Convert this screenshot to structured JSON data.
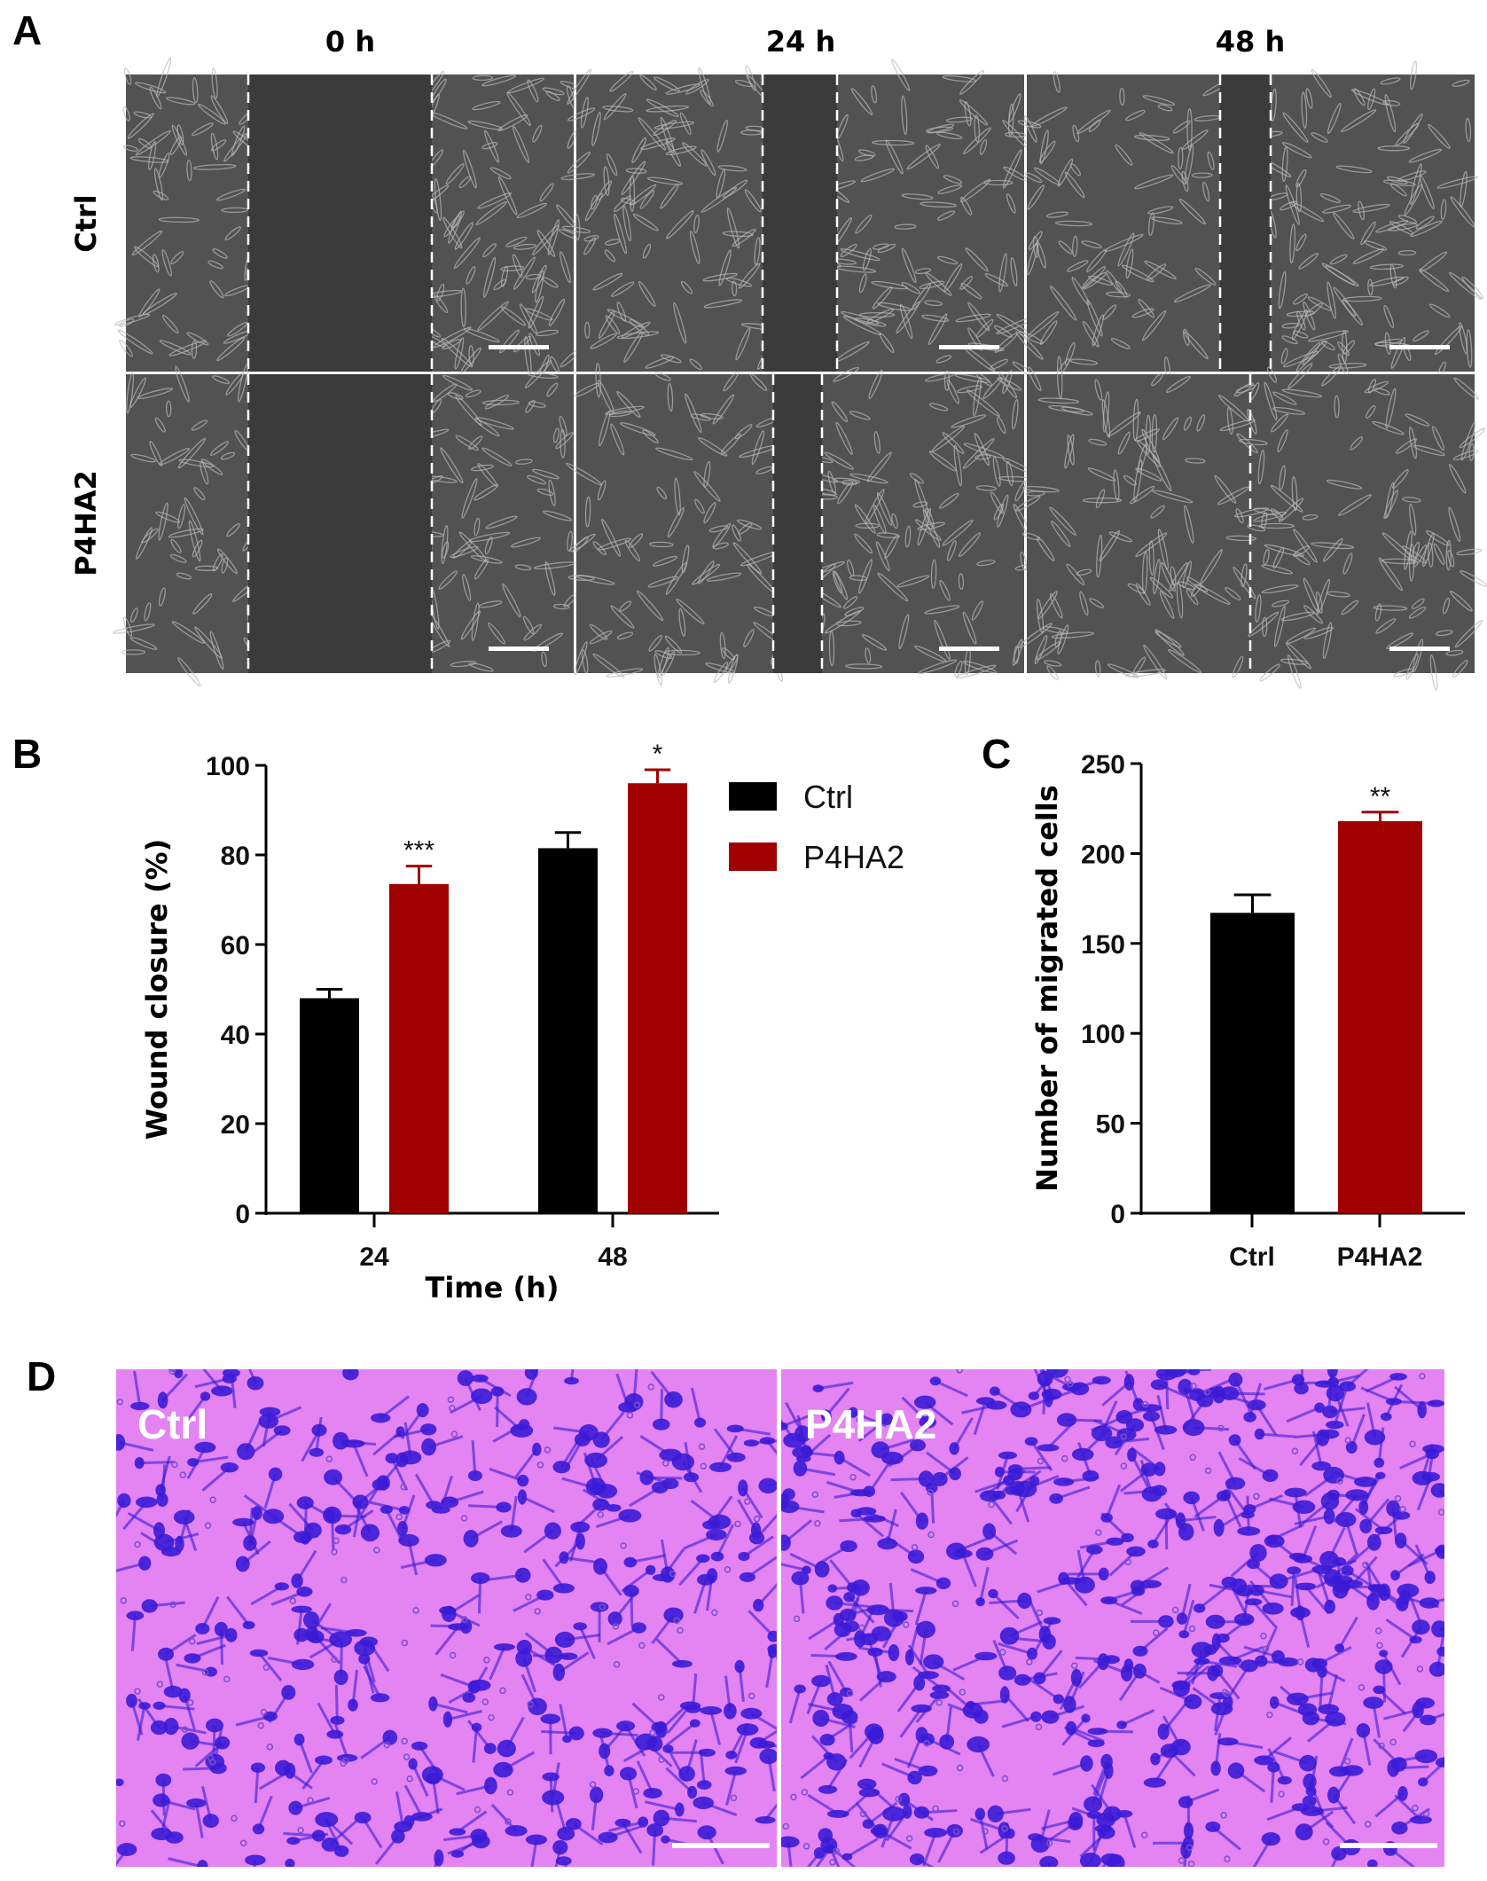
{
  "panel_labels": {
    "a": "A",
    "b": "B",
    "c": "C",
    "d": "D"
  },
  "panel_a": {
    "columns": [
      "0 h",
      "24 h",
      "48 h"
    ],
    "rows": [
      "Ctrl",
      "P4HA2"
    ],
    "colors": {
      "gap": "#3b3b3b",
      "cells": "#525252",
      "cell_outline": "#b8b8b8",
      "line": "#ffffff"
    }
  },
  "panel_d": {
    "labels": [
      "Ctrl",
      "P4HA2"
    ],
    "colors": {
      "background": "#e483f2",
      "stain": "#3a1bd6"
    }
  },
  "chart_data": [
    {
      "type": "bar",
      "panel": "B",
      "xlabel": "Time (h)",
      "ylabel": "Wound closure (%)",
      "categories": [
        "24",
        "48"
      ],
      "ylim": [
        0,
        100
      ],
      "yticks": [
        "0",
        "20",
        "40",
        "60",
        "80",
        "100"
      ],
      "legend": "right",
      "series": [
        {
          "name": "Ctrl",
          "color": "#000000",
          "values": [
            48,
            81.5
          ],
          "errors": [
            2,
            3.5
          ]
        },
        {
          "name": "P4HA2",
          "color": "#a00000",
          "values": [
            73.5,
            96
          ],
          "errors": [
            4,
            3
          ]
        }
      ],
      "annotations": [
        "***",
        "*"
      ]
    },
    {
      "type": "bar",
      "panel": "C",
      "xlabel": "",
      "ylabel": "Number of migrated cells",
      "categories": [
        "Ctrl",
        "P4HA2"
      ],
      "ylim": [
        0,
        250
      ],
      "yticks": [
        "0",
        "50",
        "100",
        "150",
        "200",
        "250"
      ],
      "values": [
        167,
        218
      ],
      "errors": [
        10,
        5
      ],
      "colors": [
        "#000000",
        "#a00000"
      ],
      "annotations": [
        "",
        "**"
      ]
    }
  ]
}
